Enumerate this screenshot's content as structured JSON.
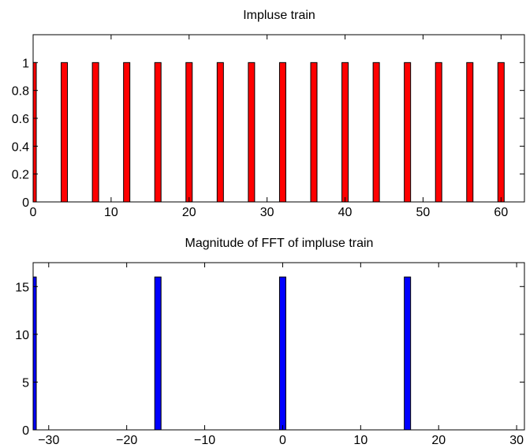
{
  "chart_data": [
    {
      "type": "bar",
      "title": "Impluse train",
      "xlabel": "",
      "ylabel": "",
      "xlim": [
        0,
        63
      ],
      "ylim": [
        0,
        1.2
      ],
      "xticks": [
        0,
        10,
        20,
        30,
        40,
        50,
        60
      ],
      "yticks": [
        0,
        0.2,
        0.4,
        0.6,
        0.8,
        1
      ],
      "xtick_labels": [
        "0",
        "10",
        "20",
        "30",
        "40",
        "50",
        "60"
      ],
      "ytick_labels": [
        "0",
        "0.2",
        "0.4",
        "0.6",
        "0.8",
        "1"
      ],
      "grid": false,
      "bar_color": "#ff0000",
      "x": [
        0,
        4,
        8,
        12,
        16,
        20,
        24,
        28,
        32,
        36,
        40,
        44,
        48,
        52,
        56,
        60
      ],
      "values": [
        1,
        1,
        1,
        1,
        1,
        1,
        1,
        1,
        1,
        1,
        1,
        1,
        1,
        1,
        1,
        1
      ]
    },
    {
      "type": "bar",
      "title": "Magnitude of FFT of impluse train",
      "xlabel": "",
      "ylabel": "",
      "xlim": [
        -32,
        31
      ],
      "ylim": [
        0,
        17.5
      ],
      "xticks": [
        -30,
        -20,
        -10,
        0,
        10,
        20,
        30
      ],
      "yticks": [
        0,
        5,
        10,
        15
      ],
      "xtick_labels": [
        "−30",
        "−20",
        "−10",
        "0",
        "10",
        "20",
        "30"
      ],
      "ytick_labels": [
        "0",
        "5",
        "10",
        "15"
      ],
      "grid": false,
      "bar_color": "#0000ff",
      "x": [
        -32,
        -16,
        0,
        16
      ],
      "values": [
        16,
        16,
        16,
        16
      ]
    }
  ]
}
